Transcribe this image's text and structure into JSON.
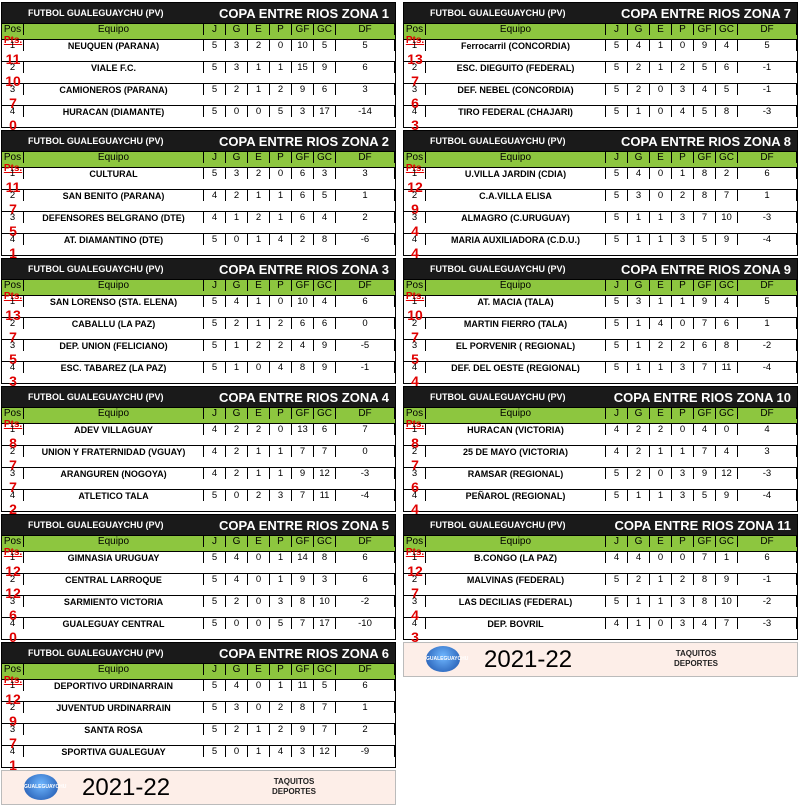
{
  "organization": "FUTBOL GUALEGUAYCHU (PV)",
  "headers": {
    "pos": "Pos",
    "team": "Equipo",
    "j": "J",
    "g": "G",
    "e": "E",
    "p": "P",
    "gf": "GF",
    "gc": "GC",
    "df": "DF",
    "pts": "Pts."
  },
  "footer": {
    "season": "2021-22",
    "brand_line1": "TAQUITOS",
    "brand_line2": "DEPORTES",
    "logo_text": "GUALEGUAYCHU"
  },
  "zones_left": [
    {
      "title": "COPA ENTRE RIOS ZONA 1",
      "rows": [
        [
          "1",
          "NEUQUEN (PARANA)",
          "5",
          "3",
          "2",
          "0",
          "10",
          "5",
          "5",
          "11"
        ],
        [
          "2",
          "VIALE F.C.",
          "5",
          "3",
          "1",
          "1",
          "15",
          "9",
          "6",
          "10"
        ],
        [
          "3",
          "CAMIONEROS (PARANA)",
          "5",
          "2",
          "1",
          "2",
          "9",
          "6",
          "3",
          "7"
        ],
        [
          "4",
          "HURACAN (DIAMANTE)",
          "5",
          "0",
          "0",
          "5",
          "3",
          "17",
          "-14",
          "0"
        ]
      ]
    },
    {
      "title": "COPA ENTRE RIOS ZONA 2",
      "rows": [
        [
          "1",
          "CULTURAL",
          "5",
          "3",
          "2",
          "0",
          "6",
          "3",
          "3",
          "11"
        ],
        [
          "2",
          "SAN BENITO (PARANA)",
          "4",
          "2",
          "1",
          "1",
          "6",
          "5",
          "1",
          "7"
        ],
        [
          "3",
          "DEFENSORES BELGRANO (DTE)",
          "4",
          "1",
          "2",
          "1",
          "6",
          "4",
          "2",
          "5"
        ],
        [
          "4",
          "AT. DIAMANTINO (DTE)",
          "5",
          "0",
          "1",
          "4",
          "2",
          "8",
          "-6",
          "1"
        ]
      ]
    },
    {
      "title": "COPA ENTRE RIOS ZONA 3",
      "rows": [
        [
          "1",
          "SAN LORENSO (STA. ELENA)",
          "5",
          "4",
          "1",
          "0",
          "10",
          "4",
          "6",
          "13"
        ],
        [
          "2",
          "CABALLU (LA PAZ)",
          "5",
          "2",
          "1",
          "2",
          "6",
          "6",
          "0",
          "7"
        ],
        [
          "3",
          "DEP. UNION (FELICIANO)",
          "5",
          "1",
          "2",
          "2",
          "4",
          "9",
          "-5",
          "5"
        ],
        [
          "4",
          "ESC. TABAREZ (LA PAZ)",
          "5",
          "1",
          "0",
          "4",
          "8",
          "9",
          "-1",
          "3"
        ]
      ]
    },
    {
      "title": "COPA ENTRE RIOS ZONA 4",
      "rows": [
        [
          "1",
          "ADEV VILLAGUAY",
          "4",
          "2",
          "2",
          "0",
          "13",
          "6",
          "7",
          "8"
        ],
        [
          "2",
          "UNION Y FRATERNIDAD (VGUAY)",
          "4",
          "2",
          "1",
          "1",
          "7",
          "7",
          "0",
          "7"
        ],
        [
          "3",
          "ARANGUREN (NOGOYA)",
          "4",
          "2",
          "1",
          "1",
          "9",
          "12",
          "-3",
          "7"
        ],
        [
          "4",
          "ATLETICO TALA",
          "5",
          "0",
          "2",
          "3",
          "7",
          "11",
          "-4",
          "2"
        ]
      ]
    },
    {
      "title": "COPA ENTRE RIOS ZONA 5",
      "rows": [
        [
          "1",
          "GIMNASIA URUGUAY",
          "5",
          "4",
          "0",
          "1",
          "14",
          "8",
          "6",
          "12"
        ],
        [
          "2",
          "CENTRAL LARROQUE",
          "5",
          "4",
          "0",
          "1",
          "9",
          "3",
          "6",
          "12"
        ],
        [
          "3",
          "SARMIENTO VICTORIA",
          "5",
          "2",
          "0",
          "3",
          "8",
          "10",
          "-2",
          "6"
        ],
        [
          "4",
          "GUALEGUAY CENTRAL",
          "5",
          "0",
          "0",
          "5",
          "7",
          "17",
          "-10",
          "0"
        ]
      ]
    },
    {
      "title": "COPA ENTRE RIOS ZONA 6",
      "rows": [
        [
          "1",
          "DEPORTIVO URDINARRAIN",
          "5",
          "4",
          "0",
          "1",
          "11",
          "5",
          "6",
          "12"
        ],
        [
          "2",
          "JUVENTUD URDINARRAIN",
          "5",
          "3",
          "0",
          "2",
          "8",
          "7",
          "1",
          "9"
        ],
        [
          "3",
          "SANTA ROSA",
          "5",
          "2",
          "1",
          "2",
          "9",
          "7",
          "2",
          "7"
        ],
        [
          "4",
          "SPORTIVA GUALEGUAY",
          "5",
          "0",
          "1",
          "4",
          "3",
          "12",
          "-9",
          "1"
        ]
      ]
    }
  ],
  "zones_right": [
    {
      "title": "COPA ENTRE RIOS ZONA 7",
      "rows": [
        [
          "1",
          "Ferrocarril (CONCORDIA)",
          "5",
          "4",
          "1",
          "0",
          "9",
          "4",
          "5",
          "13"
        ],
        [
          "2",
          "ESC. DIEGUITO (FEDERAL)",
          "5",
          "2",
          "1",
          "2",
          "5",
          "6",
          "-1",
          "7"
        ],
        [
          "3",
          "DEF. NEBEL (CONCORDIA)",
          "5",
          "2",
          "0",
          "3",
          "4",
          "5",
          "-1",
          "6"
        ],
        [
          "4",
          "TIRO FEDERAL (CHAJARI)",
          "5",
          "1",
          "0",
          "4",
          "5",
          "8",
          "-3",
          "3"
        ]
      ]
    },
    {
      "title": "COPA ENTRE RIOS ZONA 8",
      "rows": [
        [
          "1",
          "U.VILLA JARDIN (CDIA)",
          "5",
          "4",
          "0",
          "1",
          "8",
          "2",
          "6",
          "12"
        ],
        [
          "2",
          "C.A.VILLA ELISA",
          "5",
          "3",
          "0",
          "2",
          "8",
          "7",
          "1",
          "9"
        ],
        [
          "3",
          "ALMAGRO (C.URUGUAY)",
          "5",
          "1",
          "1",
          "3",
          "7",
          "10",
          "-3",
          "4"
        ],
        [
          "4",
          "MARIA AUXILIADORA (C.D.U.)",
          "5",
          "1",
          "1",
          "3",
          "5",
          "9",
          "-4",
          "4"
        ]
      ]
    },
    {
      "title": "COPA ENTRE RIOS ZONA 9",
      "rows": [
        [
          "1",
          "AT. MACIA (TALA)",
          "5",
          "3",
          "1",
          "1",
          "9",
          "4",
          "5",
          "10"
        ],
        [
          "2",
          "MARTIN FIERRO (TALA)",
          "5",
          "1",
          "4",
          "0",
          "7",
          "6",
          "1",
          "7"
        ],
        [
          "3",
          "EL PORVENIR ( REGIONAL)",
          "5",
          "1",
          "2",
          "2",
          "6",
          "8",
          "-2",
          "5"
        ],
        [
          "4",
          "DEF. DEL OESTE (REGIONAL)",
          "5",
          "1",
          "1",
          "3",
          "7",
          "11",
          "-4",
          "4"
        ]
      ]
    },
    {
      "title": "COPA ENTRE RIOS ZONA 10",
      "rows": [
        [
          "1",
          "HURACAN (VICTORIA)",
          "4",
          "2",
          "2",
          "0",
          "4",
          "0",
          "4",
          "8"
        ],
        [
          "2",
          "25 DE MAYO (VICTORIA)",
          "4",
          "2",
          "1",
          "1",
          "7",
          "4",
          "3",
          "7"
        ],
        [
          "3",
          "RAMSAR (REGIONAL)",
          "5",
          "2",
          "0",
          "3",
          "9",
          "12",
          "-3",
          "6"
        ],
        [
          "4",
          "PEÑAROL (REGIONAL)",
          "5",
          "1",
          "1",
          "3",
          "5",
          "9",
          "-4",
          "4"
        ]
      ]
    },
    {
      "title": "COPA ENTRE RIOS ZONA 11",
      "rows": [
        [
          "1",
          "B.CONGO (LA PAZ)",
          "4",
          "4",
          "0",
          "0",
          "7",
          "1",
          "6",
          "12"
        ],
        [
          "2",
          "MALVINAS (FEDERAL)",
          "5",
          "2",
          "1",
          "2",
          "8",
          "9",
          "-1",
          "7"
        ],
        [
          "3",
          "LAS DECILIAS (FEDERAL)",
          "5",
          "1",
          "1",
          "3",
          "8",
          "10",
          "-2",
          "4"
        ],
        [
          "4",
          "DEP. BOVRIL",
          "4",
          "1",
          "0",
          "3",
          "4",
          "7",
          "-3",
          "3"
        ]
      ]
    }
  ]
}
